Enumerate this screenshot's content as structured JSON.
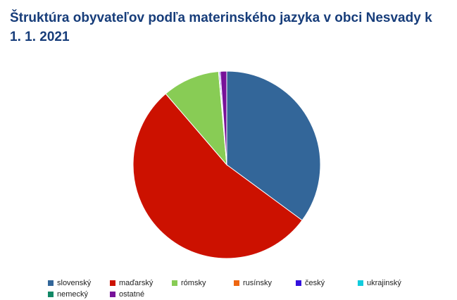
{
  "chart_data": {
    "type": "pie",
    "title": "Štruktúra obyvateľov podľa materinského jazyka v obci Nesvady k 1. 1. 2021",
    "categories": [
      "slovenský",
      "maďarský",
      "rómsky",
      "rusínsky",
      "český",
      "ukrajinský",
      "nemecký",
      "ostatné"
    ],
    "values": [
      35.1,
      53.6,
      9.9,
      0.1,
      0.2,
      0.0,
      0.0,
      1.1
    ],
    "colors": [
      "#336699",
      "#cc1100",
      "#88cc55",
      "#ee6611",
      "#3311dd",
      "#11ccdd",
      "#118866",
      "#771199"
    ],
    "legend": "bottom"
  }
}
